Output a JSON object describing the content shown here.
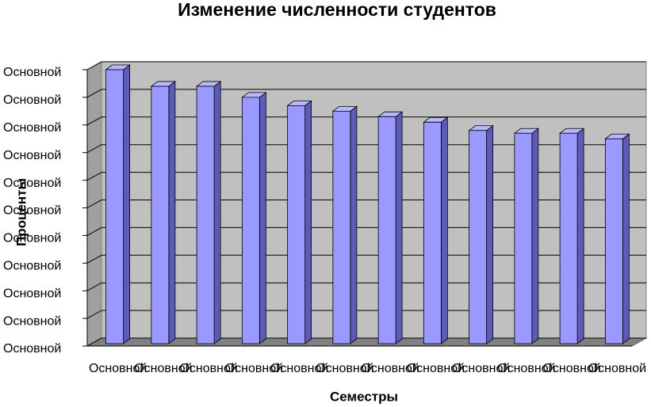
{
  "chart_data": {
    "type": "bar3d",
    "title": "Изменение численности студентов",
    "x_label": "Семестры",
    "y_label": "Проценты",
    "categories": [
      "Основной",
      "Основной",
      "Основной",
      "Основной",
      "Основной",
      "Основной",
      "Основной",
      "Основной",
      "Основной",
      "Основной",
      "Основной",
      "Основной"
    ],
    "values": [
      100,
      94,
      94,
      90,
      87,
      85,
      83,
      81,
      78,
      77,
      77,
      75
    ],
    "color": "#9999ff",
    "ylim": [
      0,
      100
    ],
    "yticks": [
      {
        "value": 0,
        "label": "Основной"
      },
      {
        "value": 10,
        "label": "Основной"
      },
      {
        "value": 20,
        "label": "Основной"
      },
      {
        "value": 30,
        "label": "Основной"
      },
      {
        "value": 40,
        "label": "Основной"
      },
      {
        "value": 50,
        "label": "Основной"
      },
      {
        "value": 60,
        "label": "Основной"
      },
      {
        "value": 70,
        "label": "Основной"
      },
      {
        "value": 80,
        "label": "Основной"
      },
      {
        "value": 90,
        "label": "Основной"
      },
      {
        "value": 100,
        "label": "Основной"
      }
    ],
    "grid": true
  }
}
